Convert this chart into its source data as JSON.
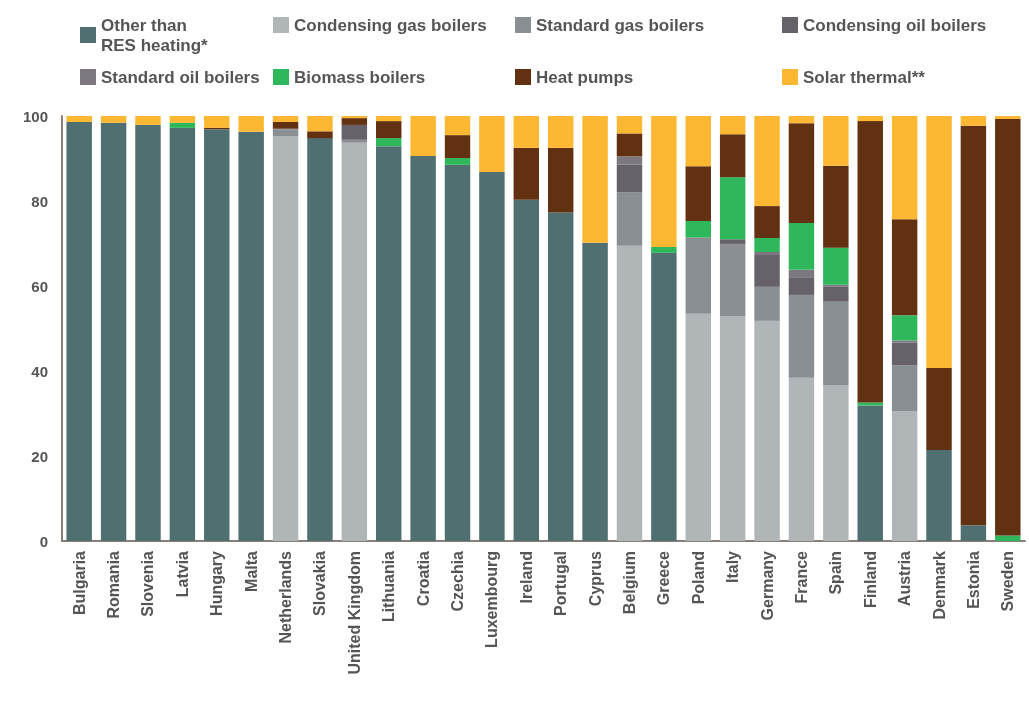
{
  "chart_data": {
    "type": "bar",
    "stacked": true,
    "legend": "top",
    "grid": false,
    "categories": [
      "Bulgaria",
      "Romania",
      "Slovenia",
      "Latvia",
      "Hungary",
      "Malta",
      "Netherlands",
      "Slovakia",
      "United Kingdom",
      "Lithuania",
      "Croatia",
      "Czechia",
      "Luxembourg",
      "Ireland",
      "Portugal",
      "Cyprus",
      "Belgium",
      "Greece",
      "Poland",
      "Italy",
      "Germany",
      "France",
      "Spain",
      "Finland",
      "Austria",
      "Denmark",
      "Estonia",
      "Sweden"
    ],
    "ylim": [
      0,
      100
    ],
    "yticks": [
      0,
      20,
      40,
      60,
      80,
      100
    ],
    "series": [
      {
        "name": "Other than RES heating*",
        "color": "#506f70",
        "values": [
          98.6,
          98.4,
          97.9,
          97.2,
          96.9,
          96.3,
          0,
          94.8,
          0,
          92.9,
          90.6,
          88.5,
          86.8,
          80.3,
          77.3,
          70.2,
          0,
          67.8,
          0,
          0,
          0,
          0,
          0,
          31.9,
          0,
          21.4,
          3.7,
          0
        ]
      },
      {
        "name": "Condensing gas boilers",
        "color": "#b0b5b8",
        "values": [
          0,
          0,
          0,
          0,
          0,
          0,
          95.3,
          0,
          93.7,
          0,
          0,
          0,
          0,
          0,
          0,
          0,
          69.5,
          0,
          53.5,
          52.8,
          51.8,
          38.4,
          36.6,
          0,
          30.5,
          0,
          0,
          0
        ]
      },
      {
        "name": "Standard gas boilers",
        "color": "#8a8f93",
        "values": [
          0,
          0,
          0,
          0,
          0,
          0,
          1.5,
          0,
          0.7,
          0,
          0,
          0,
          0,
          0,
          0,
          0,
          12.5,
          0,
          17.6,
          17.1,
          8.0,
          19.5,
          19.7,
          0,
          10.8,
          0,
          0,
          0
        ]
      },
      {
        "name": "Condensing oil boilers",
        "color": "#67626a",
        "values": [
          0,
          0,
          0,
          0,
          0,
          0,
          0,
          0,
          3.5,
          0,
          0,
          0,
          0,
          0,
          0,
          0,
          6.6,
          0,
          0,
          1.1,
          7.5,
          4.0,
          3.5,
          0,
          5.4,
          0,
          0,
          0
        ]
      },
      {
        "name": "Standard oil boilers",
        "color": "#7d7880",
        "values": [
          0,
          0,
          0,
          0,
          0,
          0,
          0.2,
          0,
          0,
          0,
          0,
          0,
          0,
          0,
          0,
          0,
          1.9,
          0,
          0.3,
          0,
          0.7,
          1.9,
          0.5,
          0,
          0.5,
          0,
          0,
          0
        ]
      },
      {
        "name": "Biomass boilers",
        "color": "#2fb75c",
        "values": [
          0,
          0,
          0,
          1.2,
          0,
          0,
          0,
          0,
          0,
          1.9,
          0,
          1.6,
          0,
          0,
          0,
          0,
          0,
          1.4,
          3.9,
          14.6,
          3.3,
          11.0,
          8.7,
          0.7,
          5.9,
          0,
          0,
          1.3
        ]
      },
      {
        "name": "Heat pumps",
        "color": "#623112",
        "values": [
          0,
          0,
          0,
          0,
          0.3,
          0,
          1.6,
          1.6,
          1.6,
          4.0,
          0,
          5.4,
          0,
          12.2,
          15.2,
          0,
          5.4,
          0,
          12.9,
          10.1,
          7.5,
          23.5,
          19.3,
          66.2,
          22.6,
          19.3,
          94.0,
          98.0
        ]
      },
      {
        "name": "Solar thermal**",
        "color": "#fdb833",
        "values": [
          1.4,
          1.6,
          2.1,
          1.6,
          2.8,
          3.7,
          1.4,
          3.6,
          0.5,
          1.2,
          9.4,
          4.5,
          13.2,
          7.5,
          7.5,
          29.8,
          4.1,
          30.8,
          11.8,
          4.3,
          21.2,
          1.7,
          11.7,
          1.2,
          24.3,
          59.3,
          2.3,
          0.7
        ]
      }
    ]
  }
}
